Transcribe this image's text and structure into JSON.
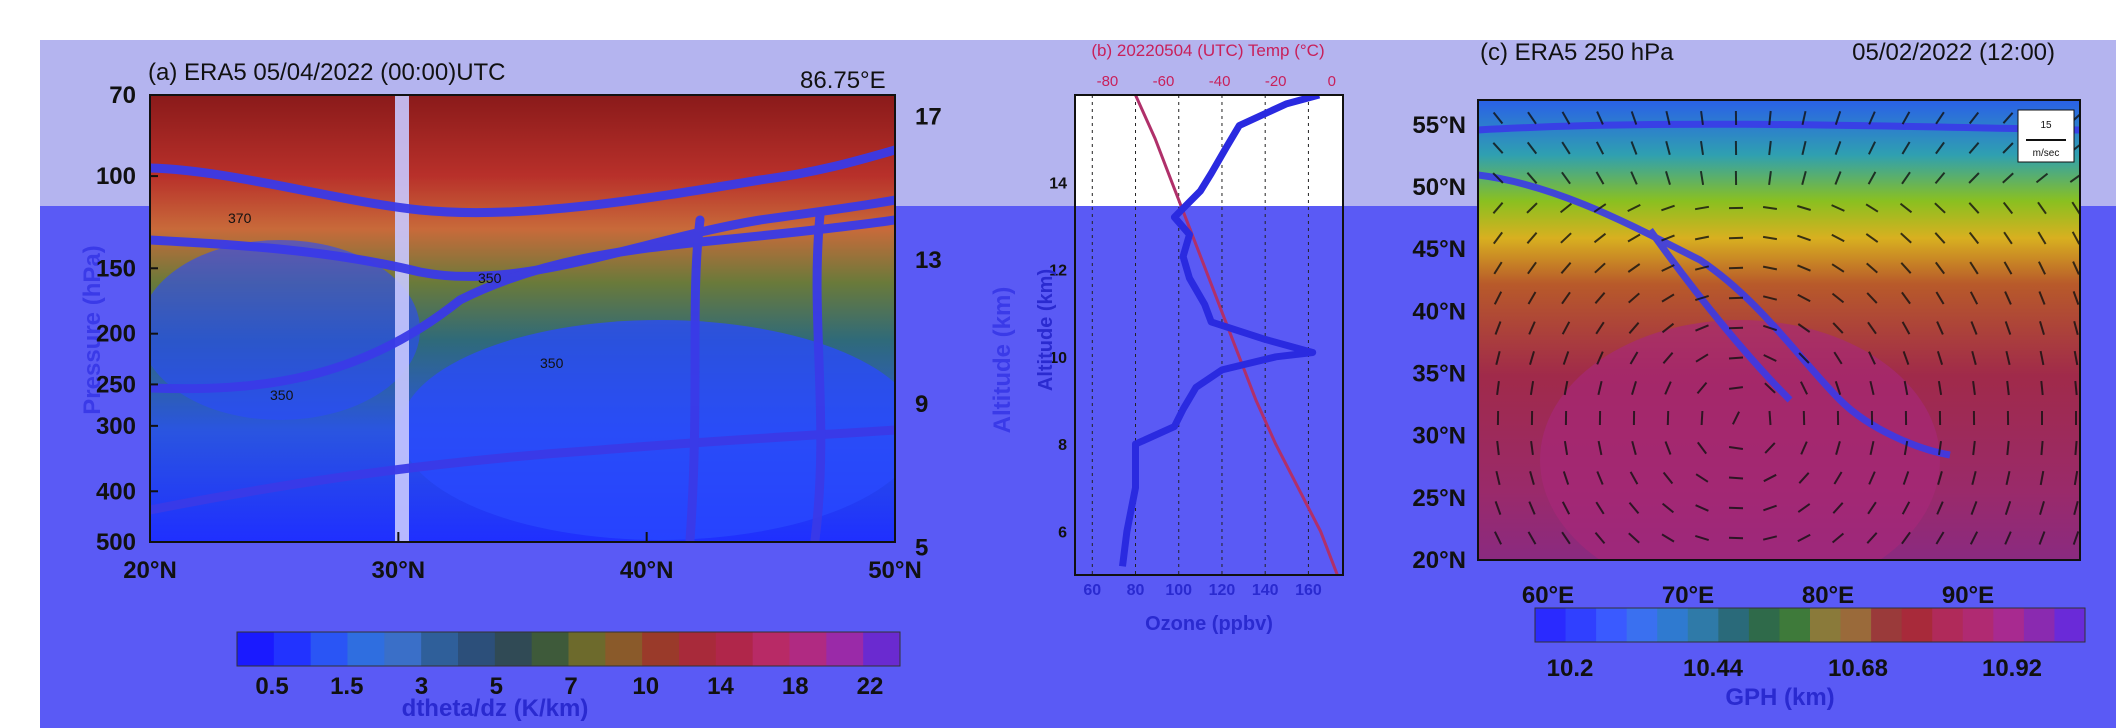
{
  "colors": {
    "overlay_top": "#b4b4ef",
    "overlay_bottom": "#5a5af5",
    "contour": "#3a3ae8",
    "temp_line": "#b0306a",
    "ozone_line": "#2a2ae0",
    "frame": "#000000",
    "panel_b_title": "#c8205a"
  },
  "panel_a": {
    "title": "(a) ERA5 05/04/2022 (00:00)UTC",
    "longitude": "86.75°E",
    "ylabel": "Pressure (hPa)",
    "y2label": "Altitude (km)",
    "yticks": [
      "70",
      "100",
      "150",
      "200",
      "250",
      "300",
      "400",
      "500"
    ],
    "y2ticks": [
      "17",
      "13",
      "9",
      "5"
    ],
    "xticks": [
      "20°N",
      "30°N",
      "40°N",
      "50°N"
    ],
    "contour_labels": [
      "370",
      "350",
      "350",
      "350"
    ],
    "colorbar_ticks": [
      "0.5",
      "1.5",
      "3",
      "5",
      "7",
      "10",
      "14",
      "18",
      "22"
    ],
    "colorbar_label": "dtheta/dz (K/km)",
    "colorbar_colors": [
      "#1a1aff",
      "#2233ff",
      "#2a55f5",
      "#2f6ee0",
      "#3a6fc8",
      "#2f5f9a",
      "#2c4f7a",
      "#304a55",
      "#3e5a3a",
      "#6d6a2c",
      "#8a5a2a",
      "#9a3a2a",
      "#a82a3a",
      "#b0264a",
      "#b82a66",
      "#b02a82",
      "#9a2aa8",
      "#6a2ad0"
    ]
  },
  "panel_b": {
    "title": "(b) 20220504 (UTC) Temp (°C)",
    "temp_ticks": [
      "-80",
      "-60",
      "-40",
      "-20",
      "0"
    ],
    "ozone_ticks": [
      "60",
      "80",
      "100",
      "120",
      "140",
      "160"
    ],
    "alt_ticks": [
      "14",
      "12",
      "10",
      "8",
      "6"
    ],
    "ylabel": "Altitude (km)",
    "xlabel": "Ozone (ppbv)"
  },
  "panel_c": {
    "title": "(c)  ERA5 250 hPa",
    "date": "05/02/2022 (12:00)",
    "lat_ticks": [
      "55°N",
      "50°N",
      "45°N",
      "40°N",
      "35°N",
      "30°N",
      "25°N",
      "20°N"
    ],
    "lon_ticks": [
      "60°E",
      "70°E",
      "80°E",
      "90°E"
    ],
    "vector_key_value": "15",
    "vector_key_unit": "m/sec",
    "colorbar_ticks": [
      "10.2",
      "10.44",
      "10.68",
      "10.92"
    ],
    "colorbar_label": "GPH (km)",
    "colorbar_colors": [
      "#2a2aff",
      "#3040ff",
      "#3a5aff",
      "#3a70f0",
      "#2f7ad0",
      "#2f7aa8",
      "#2a6a7a",
      "#2f6a4a",
      "#3e7a3a",
      "#8a7a3a",
      "#9a6a3a",
      "#9a3a3a",
      "#a82a3a",
      "#b02a5a",
      "#b02a72",
      "#a82a90",
      "#8a2ab0",
      "#6a2ad8"
    ]
  },
  "chart_data": [
    {
      "type": "heatmap",
      "title": "(a) ERA5 05/04/2022 (00:00)UTC",
      "annotation": "86.75°E",
      "xlabel": "",
      "ylabel": "Pressure (hPa)",
      "y2label": "Altitude (km)",
      "x_ticks": [
        "20°N",
        "30°N",
        "40°N",
        "50°N"
      ],
      "xlim": [
        20,
        50
      ],
      "ylim": [
        500,
        70
      ],
      "yscale": "log",
      "y2ticks": [
        17,
        13,
        9,
        5
      ],
      "colorbar": {
        "label": "dtheta/dz (K/km)",
        "ticks": [
          0.5,
          1.5,
          3,
          5,
          7,
          10,
          14,
          18,
          22
        ]
      },
      "contour_labels": [
        370,
        350,
        350,
        350
      ],
      "vertical_marker_latitude": 30
    },
    {
      "type": "line",
      "title": "(b) 20220504 (UTC) Temp (°C)",
      "xlabel": "Ozone (ppbv)",
      "ylabel": "Altitude (km)",
      "ylim": [
        5,
        16
      ],
      "x_top_ticks": [
        -80,
        -60,
        -40,
        -20,
        0
      ],
      "x_bottom_ticks": [
        60,
        80,
        100,
        120,
        140,
        160
      ],
      "series": [
        {
          "name": "Temp (°C)",
          "axis": "top",
          "points": [
            [
              2,
              5.0
            ],
            [
              -4,
              6.0
            ],
            [
              -12,
              7.0
            ],
            [
              -20,
              8.0
            ],
            [
              -27,
              9.0
            ],
            [
              -33,
              10.0
            ],
            [
              -39,
              11.0
            ],
            [
              -45,
              12.0
            ],
            [
              -51,
              13.0
            ],
            [
              -57,
              14.0
            ],
            [
              -63,
              15.0
            ],
            [
              -70,
              16.0
            ]
          ]
        },
        {
          "name": "Ozone (ppbv)",
          "axis": "bottom",
          "points": [
            [
              74,
              5.2
            ],
            [
              76,
              6.0
            ],
            [
              80,
              7.0
            ],
            [
              80,
              8.0
            ],
            [
              98,
              8.4
            ],
            [
              102,
              8.8
            ],
            [
              108,
              9.3
            ],
            [
              120,
              9.7
            ],
            [
              145,
              10.0
            ],
            [
              162,
              10.1
            ],
            [
              140,
              10.4
            ],
            [
              115,
              10.8
            ],
            [
              112,
              11.2
            ],
            [
              105,
              11.8
            ],
            [
              102,
              12.3
            ],
            [
              105,
              12.8
            ],
            [
              98,
              13.2
            ],
            [
              110,
              13.8
            ],
            [
              115,
              14.2
            ],
            [
              122,
              14.8
            ],
            [
              128,
              15.3
            ],
            [
              150,
              15.8
            ],
            [
              165,
              16.0
            ]
          ]
        }
      ]
    },
    {
      "type": "heatmap",
      "title": "(c)  ERA5 250 hPa",
      "annotation": "05/02/2022 (12:00)",
      "xlabel": "",
      "ylabel": "",
      "x_ticks": [
        "60°E",
        "70°E",
        "80°E",
        "90°E"
      ],
      "y_ticks": [
        "55°N",
        "50°N",
        "45°N",
        "40°N",
        "35°N",
        "30°N",
        "25°N",
        "20°N"
      ],
      "xlim": [
        55,
        98
      ],
      "ylim": [
        20,
        57
      ],
      "colorbar": {
        "label": "GPH (km)",
        "ticks": [
          10.2,
          10.44,
          10.68,
          10.92
        ]
      },
      "vector_key": {
        "value": 15,
        "unit": "m/sec"
      }
    }
  ]
}
